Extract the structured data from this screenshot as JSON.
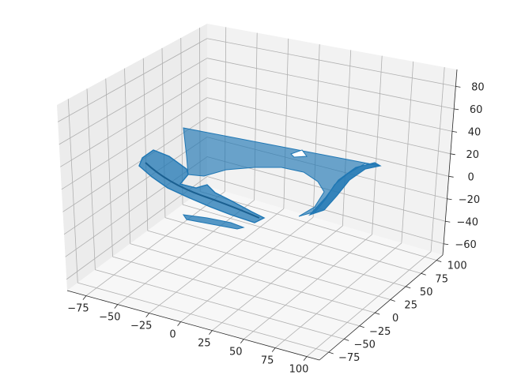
{
  "chart_data": {
    "type": "surface3d",
    "title": "",
    "xlabel": "",
    "ylabel": "",
    "zlabel": "",
    "grid": true,
    "colors": {
      "surface": "#1f77b4",
      "pane_left": "#ececec",
      "pane_back": "#f2f2f2",
      "pane_floor": "#f7f7f7"
    },
    "x_axis": {
      "ticks": [
        -75,
        -50,
        -25,
        0,
        25,
        50,
        75,
        100
      ],
      "tick_labels": [
        "−75",
        "−50",
        "−25",
        "0",
        "25",
        "50",
        "75",
        "100"
      ]
    },
    "y_axis": {
      "ticks": [
        -75,
        -50,
        -25,
        0,
        25,
        50,
        75,
        100
      ],
      "tick_labels": [
        "−75",
        "−50",
        "−25",
        "0",
        "25",
        "50",
        "75",
        "100"
      ]
    },
    "z_axis": {
      "ticks": [
        -60,
        -40,
        -20,
        0,
        20,
        40,
        60,
        80
      ],
      "tick_labels": [
        "−60",
        "−40",
        "−20",
        "0",
        "20",
        "40",
        "60",
        "80"
      ]
    },
    "surface_description_note": "",
    "series": []
  }
}
